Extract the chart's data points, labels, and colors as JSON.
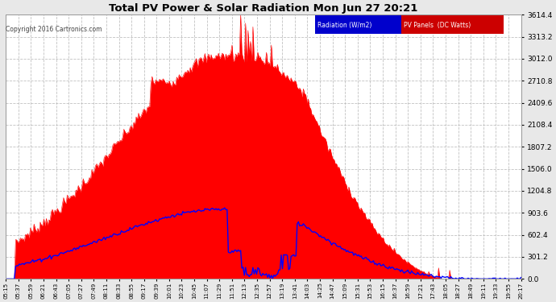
{
  "title": "Total PV Power & Solar Radiation Mon Jun 27 20:21",
  "copyright": "Copyright 2016 Cartronics.com",
  "ylim": [
    0,
    3614.4
  ],
  "yticks": [
    0.0,
    301.2,
    602.4,
    903.6,
    1204.8,
    1506.0,
    1807.2,
    2108.4,
    2409.6,
    2710.8,
    3012.0,
    3313.2,
    3614.4
  ],
  "bg_color": "#e8e8e8",
  "plot_bg_color": "#ffffff",
  "grid_color": "#bbbbbb",
  "title_color": "#000000",
  "red_fill_color": "#ff0000",
  "blue_line_color": "#0000ff",
  "time_labels": [
    "05:15",
    "05:37",
    "05:59",
    "06:21",
    "06:43",
    "07:05",
    "07:27",
    "07:49",
    "08:11",
    "08:33",
    "08:55",
    "09:17",
    "09:39",
    "10:01",
    "10:23",
    "10:45",
    "11:07",
    "11:29",
    "11:51",
    "12:13",
    "12:35",
    "12:57",
    "13:19",
    "13:41",
    "14:03",
    "14:25",
    "14:47",
    "15:09",
    "15:31",
    "15:53",
    "16:15",
    "16:37",
    "16:59",
    "17:21",
    "17:43",
    "18:05",
    "18:27",
    "18:49",
    "19:11",
    "19:33",
    "19:55",
    "20:17"
  ]
}
